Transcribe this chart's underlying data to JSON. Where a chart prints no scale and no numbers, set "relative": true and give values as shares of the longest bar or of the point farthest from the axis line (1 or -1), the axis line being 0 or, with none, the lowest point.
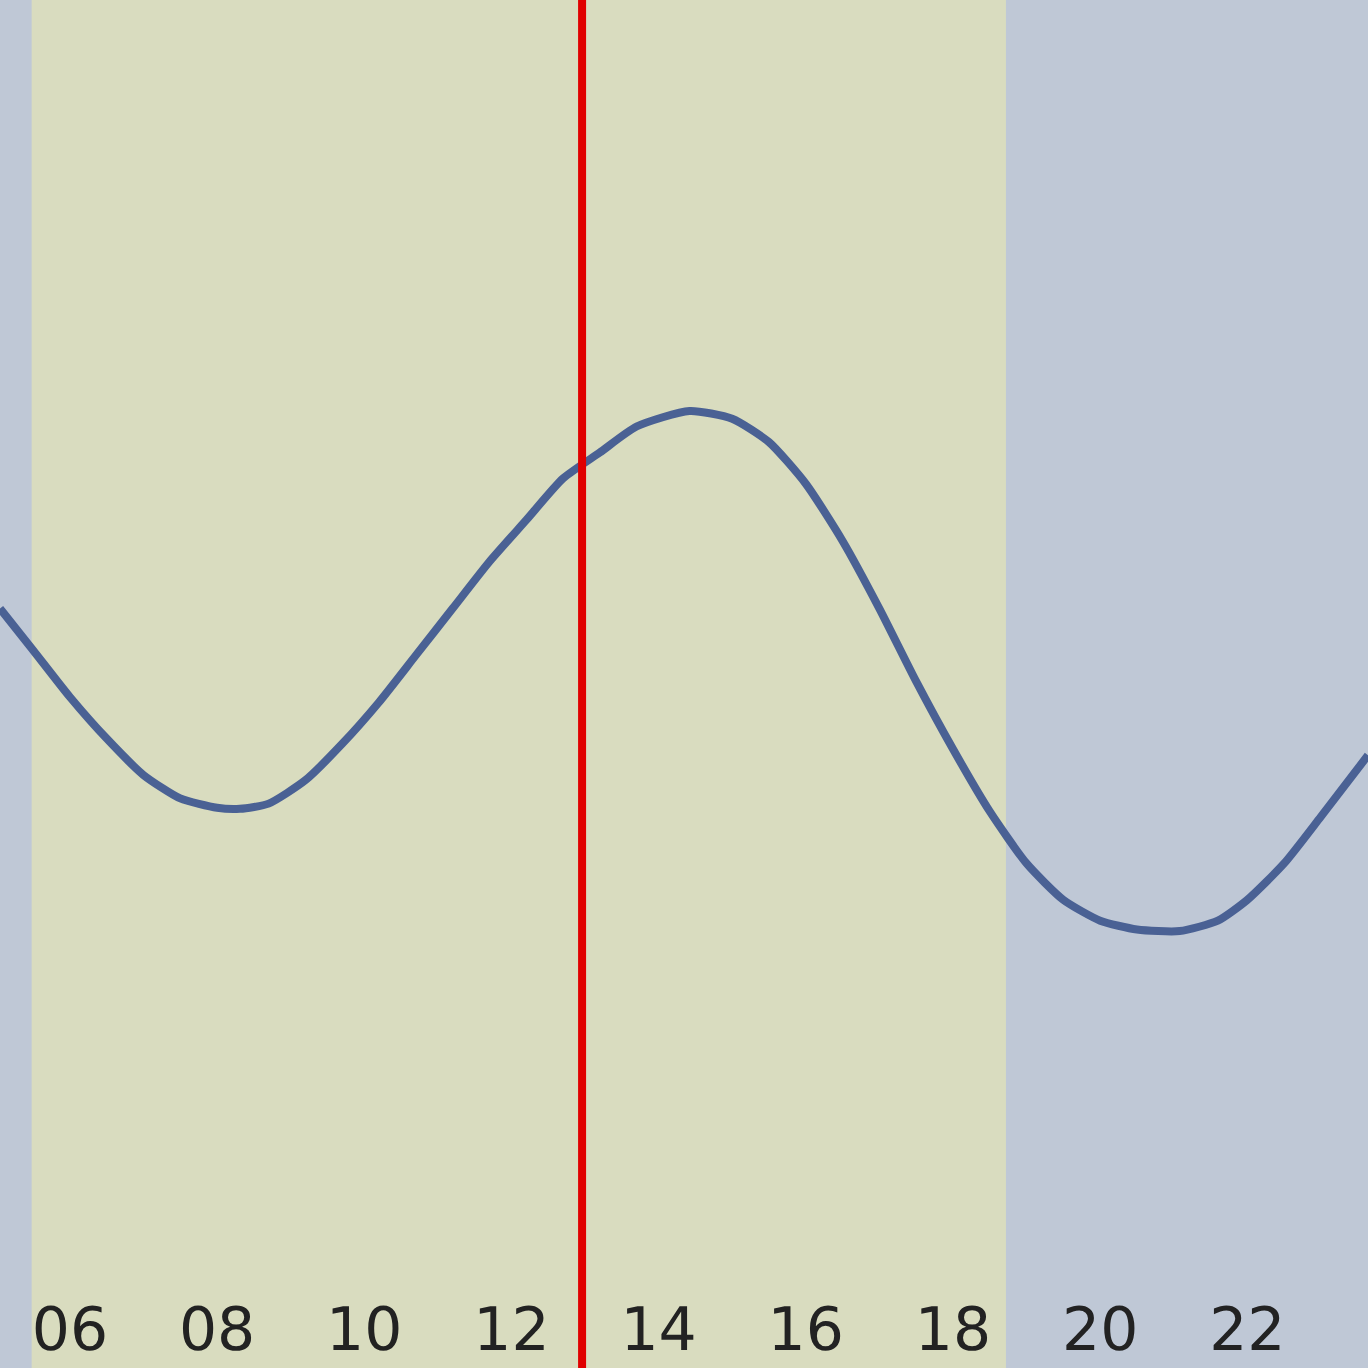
{
  "chart_data": {
    "type": "line",
    "relative": true,
    "x": [
      5.05,
      5.5,
      6,
      6.5,
      7,
      7.5,
      8,
      8.31,
      8.7,
      9.2,
      9.7,
      10.2,
      10.7,
      11.2,
      11.7,
      12.2,
      12.7,
      13.2,
      13.7,
      14.42,
      15,
      15.5,
      16,
      16.5,
      17,
      17.5,
      18,
      18.5,
      19,
      19.5,
      20,
      20.5,
      21.08,
      21.6,
      22,
      22.5,
      23,
      23.64
    ],
    "series": [
      {
        "color": "#4a6194",
        "values": [
          0.62,
          0.54,
          0.45,
          0.37,
          0.3,
          0.255,
          0.237,
          0.235,
          0.245,
          0.29,
          0.36,
          0.44,
          0.53,
          0.62,
          0.71,
          0.79,
          0.87,
          0.92,
          0.97,
          1.0,
          0.985,
          0.94,
          0.86,
          0.75,
          0.62,
          0.48,
          0.35,
          0.23,
          0.13,
          0.06,
          0.02,
          0.003,
          0,
          0.02,
          0.06,
          0.13,
          0.22,
          0.338
        ]
      }
    ],
    "xlim": [
      5.05,
      23.64
    ],
    "xticks": [
      {
        "value": 6,
        "label": "06"
      },
      {
        "value": 8,
        "label": "08"
      },
      {
        "value": 10,
        "label": "10"
      },
      {
        "value": 12,
        "label": "12"
      },
      {
        "value": 14,
        "label": "14"
      },
      {
        "value": 16,
        "label": "16"
      },
      {
        "value": 18,
        "label": "18"
      },
      {
        "value": 20,
        "label": "20"
      },
      {
        "value": 22,
        "label": "22"
      }
    ],
    "bands": [
      {
        "axis": "x",
        "from": 5.48,
        "to": 18.72,
        "color": "#d9dcbf"
      }
    ],
    "ref_lines": [
      {
        "axis": "x",
        "value": 12.96,
        "color": "#e00000",
        "line_style": "solid"
      }
    ],
    "grid": false,
    "legend": false,
    "marker": "none",
    "line_style": "solid",
    "tick_labels": "x"
  }
}
